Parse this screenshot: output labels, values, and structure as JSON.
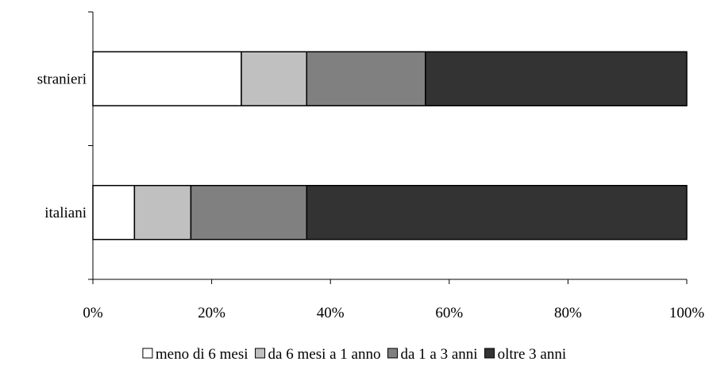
{
  "chart_data": {
    "type": "bar",
    "orientation": "horizontal",
    "stacked": "percent",
    "categories": [
      "stranieri",
      "italiani"
    ],
    "series": [
      {
        "name": "meno di 6 mesi",
        "color": "#ffffff",
        "values": [
          25,
          7
        ]
      },
      {
        "name": "da 6 mesi a 1 anno",
        "color": "#c0c0c0",
        "values": [
          11,
          9.5
        ]
      },
      {
        "name": "da 1 a 3 anni",
        "color": "#808080",
        "values": [
          20,
          19.5
        ]
      },
      {
        "name": "oltre 3 anni",
        "color": "#333333",
        "values": [
          44,
          64
        ]
      }
    ],
    "x_ticks": [
      "0%",
      "20%",
      "40%",
      "60%",
      "80%",
      "100%"
    ],
    "xlim": [
      0,
      100
    ],
    "title": "",
    "xlabel": "",
    "ylabel": "",
    "grid": false,
    "legend": "bottom"
  }
}
